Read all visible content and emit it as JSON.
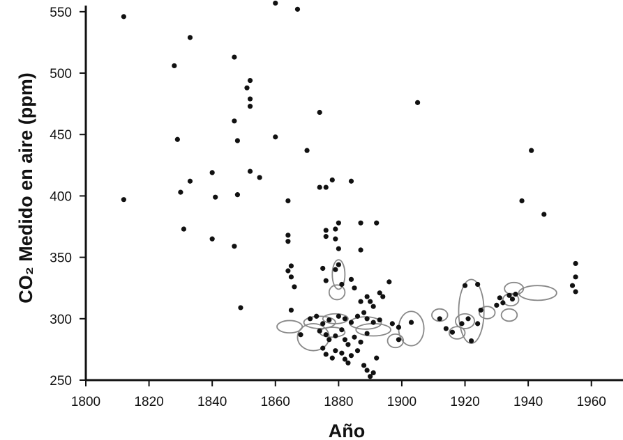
{
  "chart_data": {
    "type": "scatter",
    "title": "",
    "xlabel": "Año",
    "ylabel": "CO₂ Medido en aire (ppm)",
    "xlim": [
      1800,
      1970
    ],
    "ylim": [
      250,
      555
    ],
    "xticks": [
      1800,
      1820,
      1840,
      1860,
      1880,
      1900,
      1920,
      1940,
      1960
    ],
    "yticks": [
      250,
      300,
      350,
      400,
      450,
      500,
      550
    ],
    "grid": false,
    "legend": "none",
    "colors": {
      "points": "#111111",
      "outlines": "#888888",
      "axis": "#111111"
    },
    "points": [
      {
        "x": 1812,
        "y": 546
      },
      {
        "x": 1812,
        "y": 397
      },
      {
        "x": 1828,
        "y": 506
      },
      {
        "x": 1829,
        "y": 446
      },
      {
        "x": 1830,
        "y": 403
      },
      {
        "x": 1831,
        "y": 373
      },
      {
        "x": 1833,
        "y": 529
      },
      {
        "x": 1833,
        "y": 412
      },
      {
        "x": 1840,
        "y": 419
      },
      {
        "x": 1840,
        "y": 365
      },
      {
        "x": 1841,
        "y": 399
      },
      {
        "x": 1847,
        "y": 513
      },
      {
        "x": 1847,
        "y": 461
      },
      {
        "x": 1847,
        "y": 359
      },
      {
        "x": 1848,
        "y": 445
      },
      {
        "x": 1848,
        "y": 401
      },
      {
        "x": 1849,
        "y": 309
      },
      {
        "x": 1851,
        "y": 488
      },
      {
        "x": 1852,
        "y": 494
      },
      {
        "x": 1852,
        "y": 479
      },
      {
        "x": 1852,
        "y": 473
      },
      {
        "x": 1852,
        "y": 420
      },
      {
        "x": 1855,
        "y": 415
      },
      {
        "x": 1860,
        "y": 557
      },
      {
        "x": 1860,
        "y": 448
      },
      {
        "x": 1864,
        "y": 396
      },
      {
        "x": 1864,
        "y": 368
      },
      {
        "x": 1864,
        "y": 363
      },
      {
        "x": 1864,
        "y": 339
      },
      {
        "x": 1865,
        "y": 343
      },
      {
        "x": 1865,
        "y": 334
      },
      {
        "x": 1865,
        "y": 307
      },
      {
        "x": 1866,
        "y": 326
      },
      {
        "x": 1867,
        "y": 552
      },
      {
        "x": 1870,
        "y": 437
      },
      {
        "x": 1868,
        "y": 287
      },
      {
        "x": 1874,
        "y": 468
      },
      {
        "x": 1874,
        "y": 407
      },
      {
        "x": 1876,
        "y": 407
      },
      {
        "x": 1876,
        "y": 372
      },
      {
        "x": 1876,
        "y": 367
      },
      {
        "x": 1875,
        "y": 341
      },
      {
        "x": 1876,
        "y": 331
      },
      {
        "x": 1878,
        "y": 413
      },
      {
        "x": 1879,
        "y": 373
      },
      {
        "x": 1879,
        "y": 365
      },
      {
        "x": 1880,
        "y": 378
      },
      {
        "x": 1880,
        "y": 357
      },
      {
        "x": 1880,
        "y": 344
      },
      {
        "x": 1879,
        "y": 340
      },
      {
        "x": 1881,
        "y": 328
      },
      {
        "x": 1884,
        "y": 412
      },
      {
        "x": 1884,
        "y": 332
      },
      {
        "x": 1885,
        "y": 325
      },
      {
        "x": 1887,
        "y": 378
      },
      {
        "x": 1887,
        "y": 356
      },
      {
        "x": 1887,
        "y": 314
      },
      {
        "x": 1889,
        "y": 318
      },
      {
        "x": 1890,
        "y": 314
      },
      {
        "x": 1891,
        "y": 310
      },
      {
        "x": 1892,
        "y": 378
      },
      {
        "x": 1893,
        "y": 321
      },
      {
        "x": 1896,
        "y": 330
      },
      {
        "x": 1894,
        "y": 318
      },
      {
        "x": 1871,
        "y": 300
      },
      {
        "x": 1873,
        "y": 302
      },
      {
        "x": 1875,
        "y": 296
      },
      {
        "x": 1877,
        "y": 299
      },
      {
        "x": 1880,
        "y": 302
      },
      {
        "x": 1882,
        "y": 300
      },
      {
        "x": 1884,
        "y": 297
      },
      {
        "x": 1886,
        "y": 302
      },
      {
        "x": 1888,
        "y": 305
      },
      {
        "x": 1889,
        "y": 300
      },
      {
        "x": 1891,
        "y": 297
      },
      {
        "x": 1893,
        "y": 299
      },
      {
        "x": 1874,
        "y": 290
      },
      {
        "x": 1876,
        "y": 287
      },
      {
        "x": 1877,
        "y": 283
      },
      {
        "x": 1879,
        "y": 286
      },
      {
        "x": 1881,
        "y": 291
      },
      {
        "x": 1882,
        "y": 283
      },
      {
        "x": 1883,
        "y": 279
      },
      {
        "x": 1885,
        "y": 285
      },
      {
        "x": 1887,
        "y": 281
      },
      {
        "x": 1889,
        "y": 288
      },
      {
        "x": 1875,
        "y": 276
      },
      {
        "x": 1876,
        "y": 271
      },
      {
        "x": 1878,
        "y": 268
      },
      {
        "x": 1879,
        "y": 274
      },
      {
        "x": 1881,
        "y": 272
      },
      {
        "x": 1882,
        "y": 267
      },
      {
        "x": 1883,
        "y": 264
      },
      {
        "x": 1884,
        "y": 270
      },
      {
        "x": 1886,
        "y": 274
      },
      {
        "x": 1888,
        "y": 262
      },
      {
        "x": 1889,
        "y": 258
      },
      {
        "x": 1890,
        "y": 253
      },
      {
        "x": 1891,
        "y": 256
      },
      {
        "x": 1892,
        "y": 268
      },
      {
        "x": 1897,
        "y": 296
      },
      {
        "x": 1899,
        "y": 293
      },
      {
        "x": 1899,
        "y": 283
      },
      {
        "x": 1903,
        "y": 297
      },
      {
        "x": 1905,
        "y": 476
      },
      {
        "x": 1912,
        "y": 300
      },
      {
        "x": 1914,
        "y": 292
      },
      {
        "x": 1916,
        "y": 289
      },
      {
        "x": 1919,
        "y": 296
      },
      {
        "x": 1920,
        "y": 327
      },
      {
        "x": 1921,
        "y": 300
      },
      {
        "x": 1922,
        "y": 282
      },
      {
        "x": 1924,
        "y": 328
      },
      {
        "x": 1924,
        "y": 296
      },
      {
        "x": 1925,
        "y": 307
      },
      {
        "x": 1930,
        "y": 311
      },
      {
        "x": 1931,
        "y": 317
      },
      {
        "x": 1932,
        "y": 313
      },
      {
        "x": 1934,
        "y": 319
      },
      {
        "x": 1935,
        "y": 316
      },
      {
        "x": 1936,
        "y": 320
      },
      {
        "x": 1938,
        "y": 396
      },
      {
        "x": 1941,
        "y": 437
      },
      {
        "x": 1945,
        "y": 385
      },
      {
        "x": 1954,
        "y": 327
      },
      {
        "x": 1955,
        "y": 345
      },
      {
        "x": 1955,
        "y": 334
      },
      {
        "x": 1955,
        "y": 322
      }
    ],
    "outlines": [
      {
        "cx": 1864.5,
        "cy": 293.5,
        "rx": 4,
        "ry": 5
      },
      {
        "cx": 1872,
        "cy": 285,
        "rx": 5,
        "ry": 11
      },
      {
        "cx": 1874,
        "cy": 297,
        "rx": 5,
        "ry": 5
      },
      {
        "cx": 1879,
        "cy": 300,
        "rx": 4,
        "ry": 4
      },
      {
        "cx": 1878,
        "cy": 289,
        "rx": 4,
        "ry": 4
      },
      {
        "cx": 1880,
        "cy": 336,
        "rx": 2,
        "ry": 12
      },
      {
        "cx": 1879.5,
        "cy": 321.5,
        "rx": 2.5,
        "ry": 6
      },
      {
        "cx": 1888.5,
        "cy": 296.5,
        "rx": 5,
        "ry": 5
      },
      {
        "cx": 1891,
        "cy": 291,
        "rx": 5.5,
        "ry": 5
      },
      {
        "cx": 1898,
        "cy": 282,
        "rx": 2.5,
        "ry": 5.5
      },
      {
        "cx": 1903,
        "cy": 292,
        "rx": 4,
        "ry": 14
      },
      {
        "cx": 1912,
        "cy": 303,
        "rx": 2.5,
        "ry": 5
      },
      {
        "cx": 1917.5,
        "cy": 288.5,
        "rx": 2.5,
        "ry": 5
      },
      {
        "cx": 1920,
        "cy": 298,
        "rx": 3,
        "ry": 6
      },
      {
        "cx": 1922,
        "cy": 306,
        "rx": 4,
        "ry": 26
      },
      {
        "cx": 1927,
        "cy": 305,
        "rx": 2.5,
        "ry": 5
      },
      {
        "cx": 1935.5,
        "cy": 324.5,
        "rx": 3,
        "ry": 5
      },
      {
        "cx": 1934.5,
        "cy": 315.5,
        "rx": 2.5,
        "ry": 5
      },
      {
        "cx": 1934,
        "cy": 303,
        "rx": 2.5,
        "ry": 5
      },
      {
        "cx": 1943,
        "cy": 321,
        "rx": 6,
        "ry": 6
      }
    ]
  }
}
